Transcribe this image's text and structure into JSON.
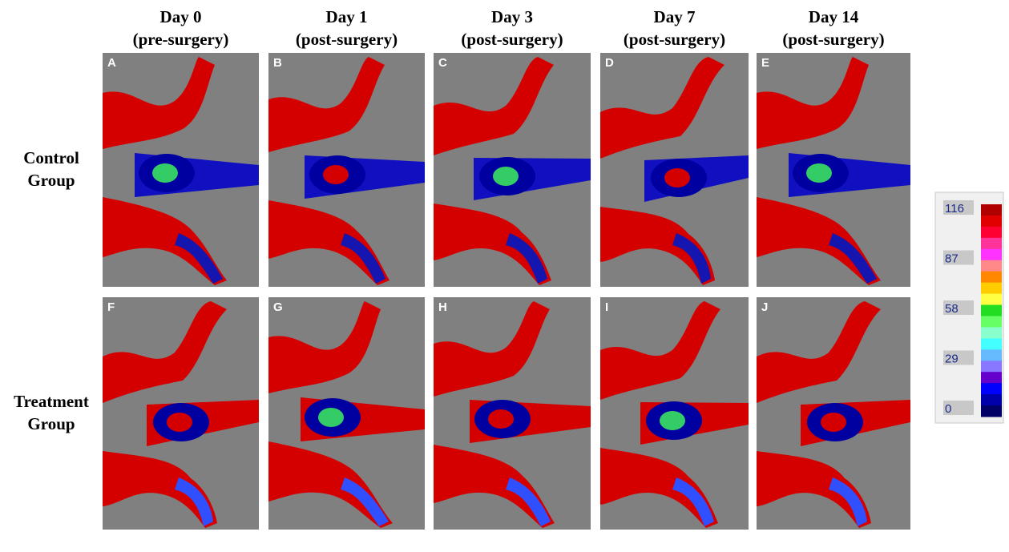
{
  "columns": [
    {
      "day": "Day 0",
      "phase": "(pre-surgery)"
    },
    {
      "day": "Day 1",
      "phase": "(post-surgery)"
    },
    {
      "day": "Day 3",
      "phase": "(post-surgery)"
    },
    {
      "day": "Day 7",
      "phase": "(post-surgery)"
    },
    {
      "day": "Day 14",
      "phase": "(post-surgery)"
    }
  ],
  "rows": [
    {
      "label": [
        "Control",
        "Group"
      ],
      "panels": [
        "A",
        "B",
        "C",
        "D",
        "E"
      ]
    },
    {
      "label": [
        "Treatment",
        "Group"
      ],
      "panels": [
        "F",
        "G",
        "H",
        "I",
        "J"
      ]
    }
  ],
  "colorbar": {
    "ticks": [
      116,
      87,
      58,
      29,
      0
    ],
    "colors": [
      "#b00000",
      "#e00000",
      "#ff0033",
      "#ff3399",
      "#ff33ff",
      "#ff8888",
      "#ff8800",
      "#ffcc00",
      "#ffff44",
      "#22dd22",
      "#66ff66",
      "#88ffcc",
      "#44ffff",
      "#66bbff",
      "#8877ff",
      "#6600cc",
      "#0000ff",
      "#0000aa",
      "#000066"
    ]
  }
}
